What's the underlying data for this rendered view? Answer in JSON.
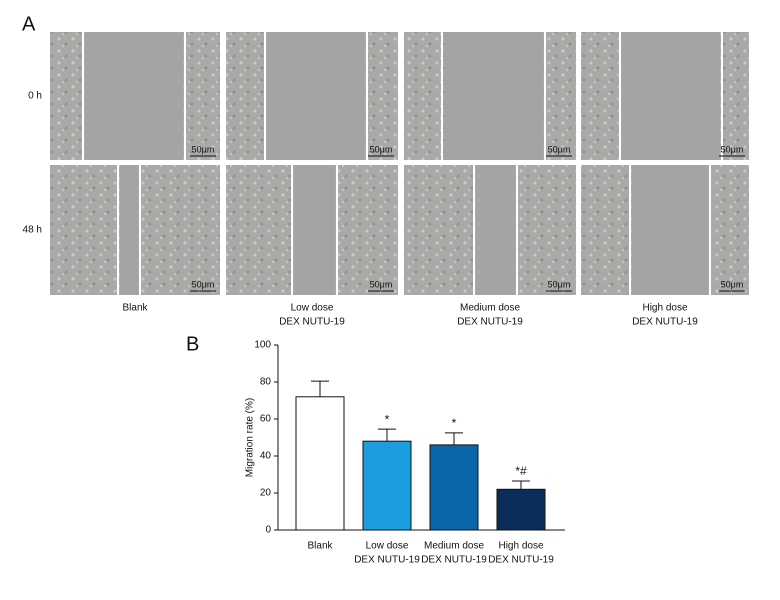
{
  "panel_a": {
    "label": "A",
    "rows": [
      "0 h",
      "48 h"
    ],
    "columns": [
      [
        "Blank"
      ],
      [
        "Low dose",
        "DEX NUTU-19"
      ],
      [
        "Medium dose",
        "DEX NUTU-19"
      ],
      [
        "High dose",
        "DEX NUTU-19"
      ]
    ],
    "scale_bar": "50μm"
  },
  "chart_data": {
    "type": "bar",
    "label": "B",
    "ylabel": "Migration rate (%)",
    "categories": [
      [
        "Blank"
      ],
      [
        "Low dose",
        "DEX NUTU-19"
      ],
      [
        "Medium dose",
        "DEX NUTU-19"
      ],
      [
        "High dose",
        "DEX NUTU-19"
      ]
    ],
    "values": [
      72,
      48,
      46,
      22
    ],
    "errors": [
      8.5,
      6.5,
      6.5,
      4.5
    ],
    "value_annotations": [
      null,
      "*",
      "*",
      "*#"
    ],
    "colors": [
      "#ffffff",
      "#1a9ee0",
      "#0a66a8",
      "#0b2d5a"
    ],
    "ylim": [
      0,
      100
    ],
    "yticks": [
      0,
      20,
      40,
      60,
      80,
      100
    ]
  }
}
